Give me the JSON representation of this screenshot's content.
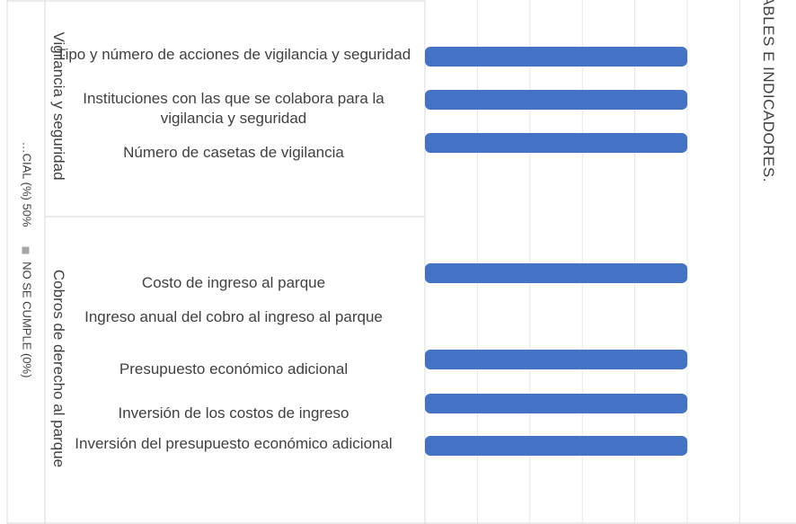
{
  "chart_data": {
    "type": "bar",
    "orientation": "horizontal",
    "title": "…ABLES E INDICADORES.",
    "legend": [
      {
        "label": "…CIAL (%) 50%",
        "color": "#a6a6a6"
      },
      {
        "label": "NO SE CUMPLE (0%)",
        "color": "#a6a6a6"
      }
    ],
    "groups": [
      {
        "name": "Vigilancia y seguridad",
        "categories": [
          {
            "label": "Tipo y número  de acciones de vigilancia y seguridad",
            "value": 100
          },
          {
            "label": "Instituciones con las que se colabora para la vigilancia y seguridad",
            "value": 100
          },
          {
            "label": "Número de casetas de vigilancia",
            "value": 100
          }
        ]
      },
      {
        "name": "Cobros de derecho al parque",
        "categories": [
          {
            "label": "Costo de ingreso al parque",
            "value": 100
          },
          {
            "label": "Ingreso anual del cobro al ingreso al parque",
            "value": 0
          },
          {
            "label": "Presupuesto económico adicional",
            "value": 100
          },
          {
            "label": "Inversión de los costos de ingreso",
            "value": 100
          },
          {
            "label": "Inversión del presupuesto económico adicional",
            "value": 100
          }
        ]
      }
    ],
    "series_color": "#4472c4",
    "xlim": [
      0,
      100
    ],
    "grid": true
  }
}
